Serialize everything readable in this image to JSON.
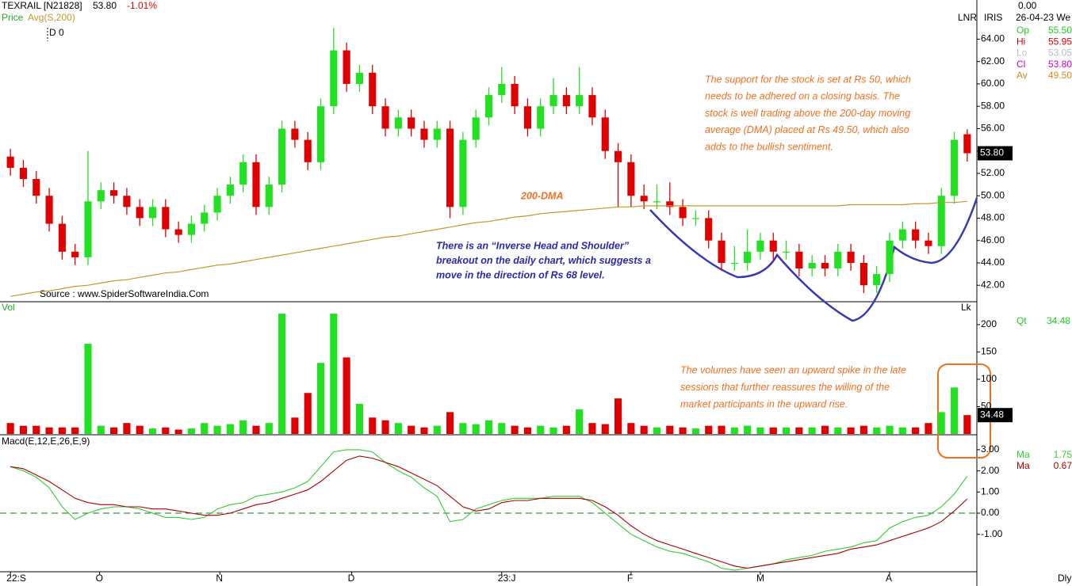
{
  "header": {
    "symbol": "TEXRAIL [N21828]",
    "price": "53.80",
    "change": "-1.01%",
    "price_label": "Price",
    "avg_label": "Avg(S,200)",
    "d_label": "D 0"
  },
  "info_panel": {
    "top": "0.00",
    "date": "26-04-23 We",
    "tags": [
      "LNR",
      "IRIS"
    ],
    "rows": [
      {
        "label": "Op",
        "value": "55.50",
        "color": "#22cc22"
      },
      {
        "label": "Hi",
        "value": "55.95",
        "color": "#dd0000"
      },
      {
        "label": "Lo",
        "value": "53.05",
        "color": "#bbbbbb"
      },
      {
        "label": "Cl",
        "value": "53.80",
        "color": "#cc00cc"
      },
      {
        "label": "Av",
        "value": "49.50",
        "color": "#d08a20"
      }
    ]
  },
  "annotations": {
    "support": [
      "The support for the stock is set at Rs 50, which",
      "needs to be adhered on a closing basis. The",
      "stock is well trading above the 200-day moving",
      "average (DMA) placed at Rs 49.50, which also",
      "adds to the bullish sentiment."
    ],
    "pattern": [
      "There is an “Inverse Head and Shoulder”",
      "breakout on the daily chart, which suggests a",
      "move in the direction of Rs 68 level."
    ],
    "volume": [
      "The volumes have seen an upward spike in the late",
      "sessions that further reassures the willing of the",
      "market participants in the upward rise."
    ],
    "dma": "200-DMA",
    "source": "Source : www.SpiderSoftwareIndia.Com",
    "lk": "Lk",
    "dly": "Dly"
  },
  "chart_data": [
    {
      "type": "candlestick",
      "up_color": "#22e022",
      "down_color": "#e00000",
      "open": [
        53.5,
        52.5,
        51.5,
        50,
        47.5,
        45,
        44.5,
        49.5,
        50.5,
        50,
        49,
        48,
        49,
        47,
        46.5,
        47.5,
        48.5,
        50,
        51,
        53,
        49,
        51,
        56,
        55,
        53,
        58,
        63,
        60,
        61,
        58,
        56,
        57,
        56,
        55,
        56,
        49,
        55,
        57,
        59,
        60,
        58,
        56,
        58,
        59,
        58,
        59,
        57,
        54,
        53,
        50,
        49.5,
        49.5,
        49,
        48,
        48,
        46,
        44,
        44,
        45,
        46,
        45,
        45,
        43.5,
        44,
        43.5,
        45,
        44,
        42,
        43,
        46,
        47,
        46,
        45.5,
        50,
        55.5
      ],
      "high": [
        54.2,
        53.2,
        52.2,
        50.7,
        48.2,
        45.7,
        54,
        51.2,
        51.2,
        50.7,
        49.7,
        49.7,
        49.7,
        47.7,
        48.2,
        49.2,
        50.7,
        51.7,
        53.7,
        53.7,
        51.7,
        56.7,
        56.7,
        55.7,
        58.7,
        65,
        63.7,
        61.7,
        61.7,
        58.7,
        57.7,
        57.7,
        56.7,
        56.7,
        56.7,
        55.7,
        57.7,
        59.7,
        61.5,
        60.7,
        58.7,
        58.7,
        60.5,
        59.7,
        61.5,
        59.7,
        57.7,
        54.7,
        53.7,
        51,
        51,
        51.2,
        49.7,
        48.7,
        48.7,
        46.7,
        45.5,
        47,
        46.7,
        46.7,
        46,
        45.7,
        44.7,
        44.7,
        45.7,
        45.7,
        44.7,
        43.7,
        46.7,
        47.7,
        47.7,
        46.7,
        50.7,
        55.7,
        55.95
      ],
      "low": [
        51.8,
        50.8,
        49.3,
        46.8,
        44.3,
        43.8,
        43.8,
        48.8,
        49.3,
        48.3,
        47.3,
        47.3,
        46.3,
        45.8,
        45.8,
        46.8,
        47.8,
        49.3,
        50.3,
        48.3,
        48.3,
        50.3,
        54.3,
        52.3,
        52.3,
        57.3,
        59.3,
        59.3,
        57.3,
        55.3,
        55.3,
        55.3,
        54.3,
        54.3,
        48,
        48.3,
        54.3,
        56.3,
        58.3,
        57.3,
        55.3,
        55.3,
        57.3,
        57.3,
        57.3,
        56.3,
        53.3,
        49,
        49,
        48.8,
        48.8,
        48.3,
        47.3,
        47.3,
        45.3,
        43.3,
        43.3,
        43.3,
        44.3,
        44.3,
        44.3,
        42.8,
        42.8,
        42.8,
        42.8,
        43.3,
        41.3,
        41.3,
        42.3,
        45.3,
        45.3,
        44.8,
        44.8,
        49.3,
        53.05
      ],
      "close": [
        52.5,
        51.5,
        50,
        47.5,
        45,
        44.5,
        49.5,
        50.5,
        50,
        49,
        48,
        49,
        47,
        46.5,
        47.5,
        48.5,
        50,
        51,
        53,
        49,
        51,
        56,
        55,
        53,
        58,
        63,
        60,
        61,
        58,
        56,
        57,
        56,
        55,
        56,
        49,
        55,
        57,
        59,
        60,
        58,
        56,
        58,
        59,
        58,
        59,
        57,
        54,
        53,
        50,
        49.5,
        49.5,
        49,
        48,
        48,
        46,
        44,
        44,
        45,
        46,
        45,
        45,
        43.5,
        44,
        43.5,
        45,
        44,
        42,
        43,
        46,
        47,
        46,
        45.5,
        50,
        55,
        53.8
      ],
      "last_label": "53.80",
      "series": [
        {
          "name": "Avg(S,200)",
          "color": "#c8962a",
          "values": [
            41.0,
            41.2,
            41.4,
            41.5,
            41.7,
            41.9,
            42.0,
            42.2,
            42.4,
            42.5,
            42.7,
            42.9,
            43.1,
            43.2,
            43.4,
            43.6,
            43.8,
            43.9,
            44.1,
            44.3,
            44.5,
            44.7,
            44.9,
            45.1,
            45.3,
            45.5,
            45.7,
            45.9,
            46.1,
            46.3,
            46.4,
            46.6,
            46.8,
            47.0,
            47.2,
            47.4,
            47.6,
            47.7,
            47.9,
            48.1,
            48.2,
            48.4,
            48.5,
            48.6,
            48.7,
            48.8,
            48.9,
            49.0,
            49.0,
            49.1,
            49.1,
            49.1,
            49.1,
            49.1,
            49.1,
            49.1,
            49.1,
            49.1,
            49.1,
            49.1,
            49.1,
            49.1,
            49.1,
            49.1,
            49.1,
            49.2,
            49.2,
            49.2,
            49.2,
            49.2,
            49.3,
            49.3,
            49.4,
            49.4,
            49.5
          ]
        }
      ],
      "ylim": [
        40.6,
        67.5
      ],
      "yticks": [
        {
          "value": 42,
          "label": "42.00"
        },
        {
          "value": 44,
          "label": "44.00"
        },
        {
          "value": 46,
          "label": "46.00"
        },
        {
          "value": 48,
          "label": "48.00"
        },
        {
          "value": 50,
          "label": "50.00"
        },
        {
          "value": 52,
          "label": "52.00"
        },
        {
          "value": 54,
          "label": "54.00"
        },
        {
          "value": 56,
          "label": "56.00"
        },
        {
          "value": 58,
          "label": "58.00"
        },
        {
          "value": 60,
          "label": "60.00"
        },
        {
          "value": 62,
          "label": "62.00"
        },
        {
          "value": 64,
          "label": "64.00"
        }
      ]
    },
    {
      "type": "bar",
      "label": "Vol",
      "info_name": "Qt",
      "last_label": "34.48",
      "values": [
        20,
        15,
        15,
        12,
        12,
        12,
        165,
        15,
        12,
        20,
        15,
        10,
        12,
        8,
        10,
        20,
        15,
        18,
        25,
        15,
        20,
        220,
        30,
        75,
        130,
        220,
        140,
        55,
        30,
        25,
        20,
        15,
        12,
        15,
        40,
        20,
        18,
        25,
        20,
        15,
        12,
        15,
        12,
        15,
        45,
        20,
        18,
        65,
        20,
        15,
        12,
        15,
        12,
        10,
        15,
        15,
        12,
        15,
        12,
        12,
        12,
        12,
        12,
        15,
        12,
        12,
        15,
        12,
        15,
        12,
        12,
        20,
        40,
        85,
        34.48
      ],
      "ylim": [
        0,
        239
      ],
      "yticks": [
        50,
        100,
        150,
        200
      ]
    },
    {
      "type": "line",
      "label": "Macd(E,12,E,26,E,9)",
      "series": [
        {
          "name": "Ma",
          "color": "#33cc33",
          "last_label": "1.75",
          "values": [
            2.2,
            2.0,
            1.7,
            1.2,
            0.3,
            -0.3,
            0.0,
            0.2,
            0.3,
            0.3,
            0.2,
            0.0,
            -0.2,
            -0.2,
            -0.3,
            -0.2,
            0.2,
            0.4,
            0.5,
            0.8,
            0.9,
            1.0,
            1.2,
            1.5,
            2.2,
            2.9,
            3.0,
            3.0,
            2.9,
            2.4,
            2.0,
            1.7,
            1.2,
            0.8,
            -0.4,
            -0.3,
            0.2,
            0.4,
            0.6,
            0.7,
            0.7,
            0.7,
            0.8,
            0.8,
            0.8,
            0.5,
            0.0,
            -0.5,
            -1.0,
            -1.3,
            -1.6,
            -1.8,
            -1.9,
            -2.1,
            -2.3,
            -2.6,
            -2.7,
            -2.6,
            -2.5,
            -2.4,
            -2.2,
            -2.1,
            -2.0,
            -1.8,
            -1.7,
            -1.6,
            -1.4,
            -1.3,
            -0.7,
            -0.4,
            -0.2,
            -0.1,
            0.3,
            0.9,
            1.75
          ]
        },
        {
          "name": "Ma",
          "color": "#aa0000",
          "last_label": "0.67",
          "values": [
            2.2,
            2.1,
            1.8,
            1.5,
            1.1,
            0.7,
            0.5,
            0.4,
            0.4,
            0.3,
            0.3,
            0.2,
            0.2,
            0.1,
            0.0,
            -0.1,
            -0.1,
            0.0,
            0.2,
            0.4,
            0.5,
            0.7,
            0.9,
            1.1,
            1.5,
            2.0,
            2.5,
            2.7,
            2.6,
            2.4,
            2.2,
            1.9,
            1.6,
            1.3,
            0.8,
            0.3,
            0.1,
            0.2,
            0.5,
            0.6,
            0.6,
            0.7,
            0.7,
            0.7,
            0.7,
            0.6,
            0.3,
            -0.1,
            -0.6,
            -1.0,
            -1.3,
            -1.5,
            -1.7,
            -1.9,
            -2.1,
            -2.3,
            -2.5,
            -2.6,
            -2.5,
            -2.4,
            -2.3,
            -2.2,
            -2.1,
            -2.0,
            -1.9,
            -1.7,
            -1.6,
            -1.5,
            -1.3,
            -1.1,
            -0.9,
            -0.7,
            -0.4,
            0.1,
            0.67
          ]
        }
      ],
      "ylim": [
        -2.77,
        3.67
      ],
      "yticks": [
        {
          "value": -1,
          "label": "-1.00"
        },
        {
          "value": 0,
          "label": "0.00"
        },
        {
          "value": 1,
          "label": "1.00"
        },
        {
          "value": 2,
          "label": "2.00"
        },
        {
          "value": 3,
          "label": "3.00"
        }
      ],
      "zero_line": true,
      "xticks": [
        {
          "value": 0,
          "label": "22:S"
        },
        {
          "value": 6.9,
          "label": "O"
        },
        {
          "value": 16.2,
          "label": "N"
        },
        {
          "value": 26.4,
          "label": "D"
        },
        {
          "value": 38,
          "label": "23:J"
        },
        {
          "value": 48,
          "label": "F"
        },
        {
          "value": 58,
          "label": "M"
        },
        {
          "value": 68,
          "label": "A"
        }
      ]
    }
  ]
}
